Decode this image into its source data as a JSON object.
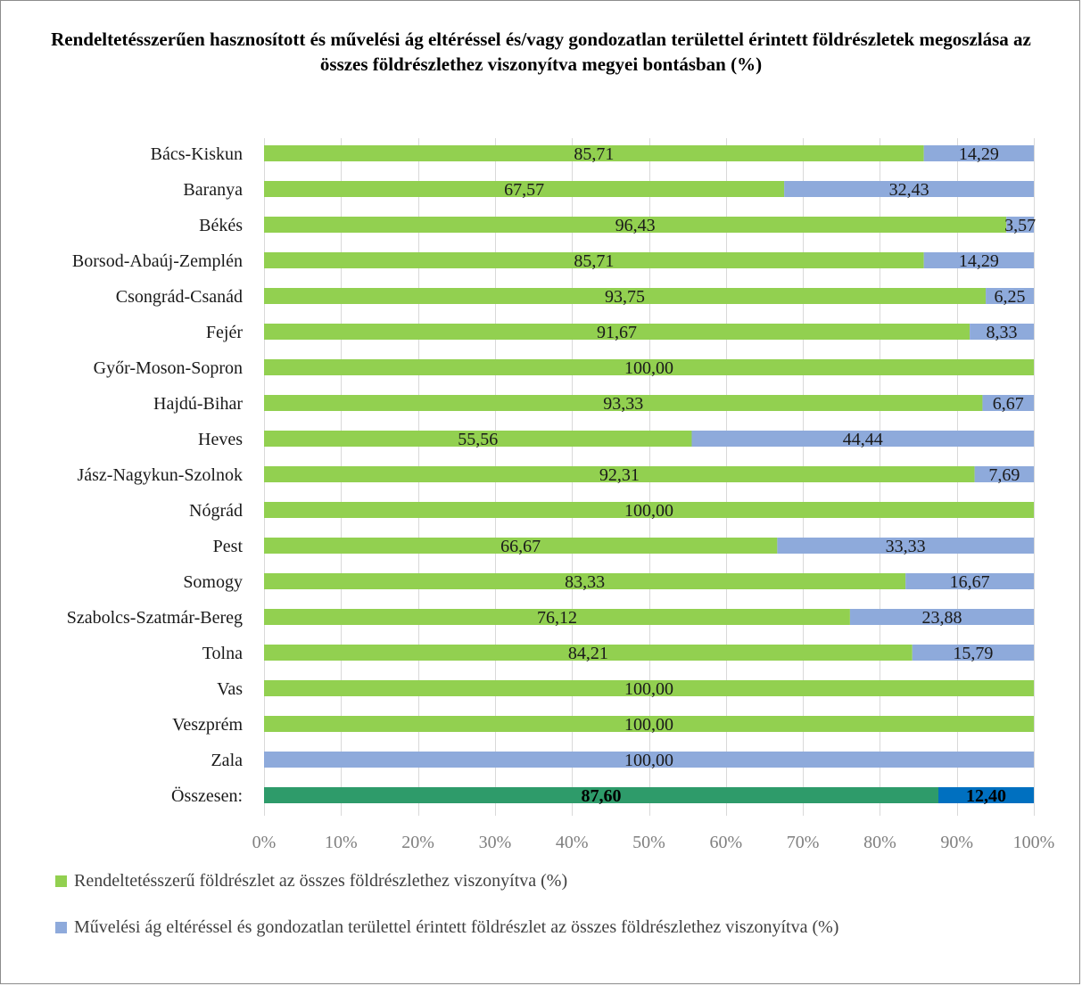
{
  "chart_data": {
    "type": "bar",
    "orientation": "horizontal",
    "stacked": "percent",
    "title": "Rendeltetésszerűen hasznosított és művelési ág eltéréssel és/vagy gondozatlan területtel érintett földrészletek megoszlása az összes földrészlethez viszonyítva megyei bontásban (%)",
    "categories": [
      "Bács-Kiskun",
      "Baranya",
      "Békés",
      "Borsod-Abaúj-Zemplén",
      "Csongrád-Csanád",
      "Fejér",
      "Győr-Moson-Sopron",
      "Hajdú-Bihar",
      "Heves",
      "Jász-Nagykun-Szolnok",
      "Nógrád",
      "Pest",
      "Somogy",
      "Szabolcs-Szatmár-Bereg",
      "Tolna",
      "Vas",
      "Veszprém",
      "Zala",
      "Összesen:"
    ],
    "series": [
      {
        "name": "Rendeltetésszerű földrészlet az összes földrészlethez viszonyítva (%)",
        "color": "#92d050",
        "values": [
          85.71,
          67.57,
          96.43,
          85.71,
          93.75,
          91.67,
          100.0,
          93.33,
          55.56,
          92.31,
          100.0,
          66.67,
          83.33,
          76.12,
          84.21,
          100.0,
          100.0,
          0,
          87.6
        ],
        "labels": [
          "85,71",
          "67,57",
          "96,43",
          "85,71",
          "93,75",
          "91,67",
          "100,00",
          "93,33",
          "55,56",
          "92,31",
          "100,00",
          "66,67",
          "83,33",
          "76,12",
          "84,21",
          "100,00",
          "100,00",
          "",
          "87,60"
        ]
      },
      {
        "name": "Művelési ág eltéréssel és gondozatlan területtel érintett földrészlet az összes földrészlethez viszonyítva (%)",
        "color": "#8eaadb",
        "values": [
          14.29,
          32.43,
          3.57,
          14.29,
          6.25,
          8.33,
          0,
          6.67,
          44.44,
          7.69,
          0,
          33.33,
          16.67,
          23.88,
          15.79,
          0,
          0,
          100.0,
          12.4
        ],
        "labels": [
          "14,29",
          "32,43",
          "3,57",
          "14,29",
          "6,25",
          "8,33",
          "",
          "6,67",
          "44,44",
          "7,69",
          "",
          "33,33",
          "16,67",
          "23,88",
          "15,79",
          "",
          "",
          "100,00",
          "12,40"
        ]
      }
    ],
    "total_row": {
      "index": 18,
      "colors": [
        "#2e9b6a",
        "#0070c0"
      ],
      "bold_labels": true
    },
    "xlim": [
      0,
      100
    ],
    "x_ticks": [
      "0%",
      "10%",
      "20%",
      "30%",
      "40%",
      "50%",
      "60%",
      "70%",
      "80%",
      "90%",
      "100%"
    ],
    "grid": "vertical",
    "legend_position": "bottom-left"
  }
}
